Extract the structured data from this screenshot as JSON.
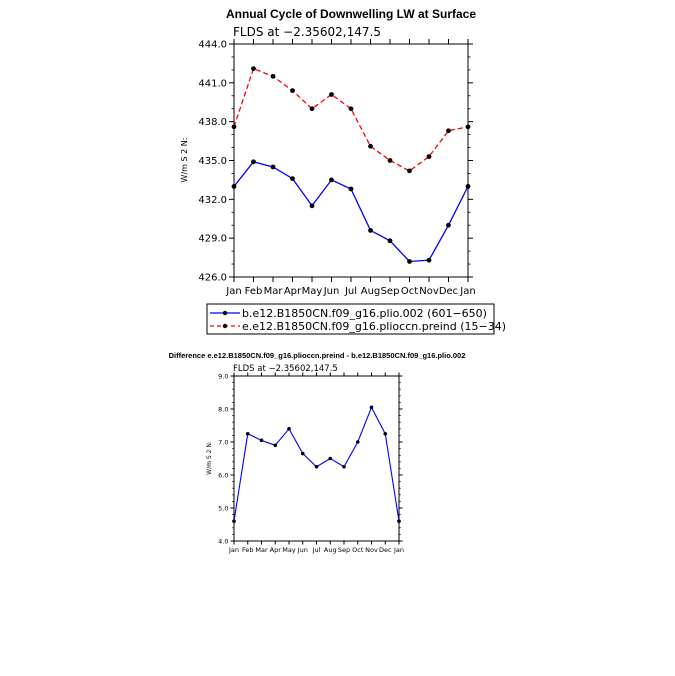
{
  "chart_data": [
    {
      "type": "line",
      "title": "Annual Cycle of Downwelling LW at Surface",
      "subtitle": "FLDS at −2.35602,147.5",
      "ylabel": "W/m S 2 N:",
      "ylim": [
        426.0,
        444.0
      ],
      "yticks": [
        "426.0",
        "429.0",
        "432.0",
        "435.0",
        "438.0",
        "441.0",
        "444.0"
      ],
      "categories": [
        "Jan",
        "Feb",
        "Mar",
        "Apr",
        "May",
        "Jun",
        "Jul",
        "Aug",
        "Sep",
        "Oct",
        "Nov",
        "Dec",
        "Jan"
      ],
      "grid": false,
      "legend_position": "bottom",
      "series": [
        {
          "name": "b.e12.B1850CN.f09_g16.plio.002 (601−650)",
          "color": "#0000ff",
          "dash": "solid",
          "values": [
            433.0,
            434.9,
            434.5,
            433.6,
            431.5,
            433.5,
            432.8,
            429.6,
            428.8,
            427.2,
            427.3,
            430.0,
            433.0
          ]
        },
        {
          "name": "e.e12.B1850CN.f09_g16.plioccn.preind (15−34)",
          "color": "#ff0000",
          "dash": "dashed",
          "values": [
            437.6,
            442.1,
            441.5,
            440.4,
            439.0,
            440.1,
            439.0,
            436.1,
            435.0,
            434.2,
            435.3,
            437.3,
            437.6
          ]
        }
      ]
    },
    {
      "type": "line",
      "title": "Difference e.e12.B1850CN.f09_g16.plioccn.preind - b.e12.B1850CN.f09_g16.plio.002",
      "subtitle": "FLDS at −2.35602,147.5",
      "ylabel": "W/m S 2 N:",
      "ylim": [
        4.0,
        9.0
      ],
      "yticks": [
        "4.0",
        "5.0",
        "6.0",
        "7.0",
        "8.0",
        "9.0"
      ],
      "categories": [
        "Jan",
        "Feb",
        "Mar",
        "Apr",
        "May",
        "Jun",
        "Jul",
        "Aug",
        "Sep",
        "Oct",
        "Nov",
        "Dec",
        "Jan"
      ],
      "grid": false,
      "series": [
        {
          "color": "#0000ff",
          "dash": "solid",
          "values": [
            4.6,
            7.25,
            7.05,
            6.9,
            7.4,
            6.65,
            6.25,
            6.5,
            6.25,
            7.0,
            8.05,
            7.25,
            4.6
          ]
        }
      ]
    }
  ]
}
